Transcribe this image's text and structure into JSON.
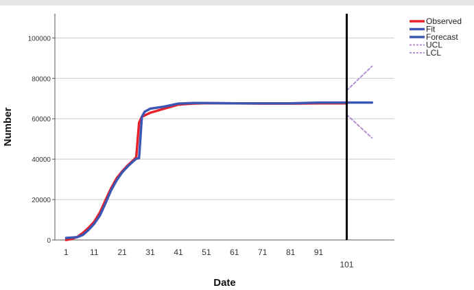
{
  "chart_data": {
    "type": "line",
    "title": "",
    "xlabel": "Date",
    "ylabel": "Number",
    "xlim": [
      -3,
      118
    ],
    "ylim": [
      0,
      112000
    ],
    "xticks": [
      1,
      11,
      21,
      31,
      41,
      51,
      61,
      71,
      81,
      91,
      101
    ],
    "yticks": [
      0,
      20000,
      40000,
      60000,
      80000,
      100000
    ],
    "grid": "horizontal",
    "legend": "right",
    "forecast_origin": 101,
    "series": [
      {
        "name": "Observed",
        "color": "#e8202a",
        "style": "solid",
        "x": [
          1,
          3,
          5,
          7,
          9,
          11,
          13,
          15,
          17,
          19,
          21,
          23,
          25,
          26,
          27,
          28,
          31,
          36,
          41,
          46,
          51,
          61,
          71,
          81,
          91,
          101
        ],
        "y": [
          0,
          500,
          1500,
          3500,
          6000,
          9000,
          13500,
          19500,
          25500,
          30500,
          34000,
          37000,
          39500,
          41000,
          58000,
          61000,
          63000,
          65000,
          67000,
          67500,
          67700,
          67600,
          67500,
          67500,
          67600,
          67600
        ]
      },
      {
        "name": "Fit",
        "color": "#3b57b3",
        "style": "solid",
        "x": [
          1,
          3,
          5,
          7,
          9,
          11,
          13,
          15,
          17,
          19,
          21,
          23,
          25,
          26,
          27,
          28,
          29,
          31,
          36,
          41,
          46,
          51,
          61,
          71,
          81,
          91,
          101
        ],
        "y": [
          1000,
          1200,
          1400,
          2500,
          5000,
          8000,
          12000,
          18000,
          24500,
          29500,
          33500,
          36500,
          39000,
          40200,
          40500,
          61000,
          63500,
          65000,
          66000,
          67500,
          67800,
          67800,
          67600,
          67600,
          67600,
          68000,
          68000
        ]
      },
      {
        "name": "Forecast",
        "color": "#3b57b3",
        "style": "solid",
        "x": [
          101,
          110
        ],
        "y": [
          68000,
          68000
        ]
      },
      {
        "name": "UCL",
        "color": "#b48fd1",
        "style": "dashed",
        "x": [
          101,
          110
        ],
        "y": [
          74000,
          86000
        ]
      },
      {
        "name": "LCL",
        "color": "#b48fd1",
        "style": "dashed",
        "x": [
          101,
          110
        ],
        "y": [
          62000,
          50500
        ]
      }
    ],
    "legend_entries": [
      "Observed",
      "Fit",
      "Forecast",
      "UCL",
      "LCL"
    ]
  }
}
